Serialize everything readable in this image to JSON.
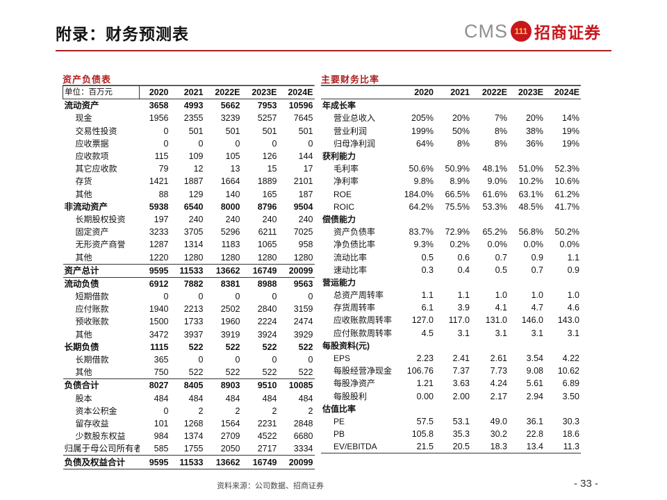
{
  "header": {
    "title": "附录：财务预测表",
    "logo_text": "CMS",
    "logo_mark": "111",
    "logo_cn": "招商证券"
  },
  "balance_sheet": {
    "title": "资产负债表",
    "unit_label": "单位：百万元",
    "years": [
      "2020",
      "2021",
      "2022E",
      "2023E",
      "2024E"
    ],
    "rows": [
      {
        "label": "流动资产",
        "style": "bold",
        "values": [
          "3658",
          "4993",
          "5662",
          "7953",
          "10596"
        ]
      },
      {
        "label": "现金",
        "style": "sub",
        "values": [
          "1956",
          "2355",
          "3239",
          "5257",
          "7645"
        ]
      },
      {
        "label": "交易性投资",
        "style": "sub",
        "values": [
          "0",
          "501",
          "501",
          "501",
          "501"
        ]
      },
      {
        "label": "应收票据",
        "style": "sub",
        "values": [
          "0",
          "0",
          "0",
          "0",
          "0"
        ]
      },
      {
        "label": "应收款项",
        "style": "sub",
        "values": [
          "115",
          "109",
          "105",
          "126",
          "144"
        ]
      },
      {
        "label": "其它应收款",
        "style": "sub",
        "values": [
          "79",
          "12",
          "13",
          "15",
          "17"
        ]
      },
      {
        "label": "存货",
        "style": "sub",
        "values": [
          "1421",
          "1887",
          "1664",
          "1889",
          "2101"
        ]
      },
      {
        "label": "其他",
        "style": "sub",
        "values": [
          "88",
          "129",
          "140",
          "165",
          "187"
        ]
      },
      {
        "label": "非流动资产",
        "style": "bold",
        "values": [
          "5938",
          "6540",
          "8000",
          "8796",
          "9504"
        ]
      },
      {
        "label": "长期股权投资",
        "style": "sub",
        "values": [
          "197",
          "240",
          "240",
          "240",
          "240"
        ]
      },
      {
        "label": "固定资产",
        "style": "sub",
        "values": [
          "3233",
          "3705",
          "5296",
          "6211",
          "7025"
        ]
      },
      {
        "label": "无形资产商誉",
        "style": "sub",
        "values": [
          "1287",
          "1314",
          "1183",
          "1065",
          "958"
        ]
      },
      {
        "label": "其他",
        "style": "sub",
        "values": [
          "1220",
          "1280",
          "1280",
          "1280",
          "1280"
        ]
      },
      {
        "label": "资产总计",
        "style": "tot",
        "values": [
          "9595",
          "11533",
          "13662",
          "16749",
          "20099"
        ]
      },
      {
        "label": "流动负债",
        "style": "tot",
        "values": [
          "6912",
          "7882",
          "8381",
          "8988",
          "9563"
        ]
      },
      {
        "label": "短期借款",
        "style": "sub",
        "values": [
          "0",
          "0",
          "0",
          "0",
          "0"
        ]
      },
      {
        "label": "应付账款",
        "style": "sub",
        "values": [
          "1940",
          "2213",
          "2502",
          "2840",
          "3159"
        ]
      },
      {
        "label": "预收账款",
        "style": "sub",
        "values": [
          "1500",
          "1733",
          "1960",
          "2224",
          "2474"
        ]
      },
      {
        "label": "其他",
        "style": "sub",
        "values": [
          "3472",
          "3937",
          "3919",
          "3924",
          "3929"
        ]
      },
      {
        "label": "长期负债",
        "style": "bold",
        "values": [
          "1115",
          "522",
          "522",
          "522",
          "522"
        ]
      },
      {
        "label": "长期借款",
        "style": "sub",
        "values": [
          "365",
          "0",
          "0",
          "0",
          "0"
        ]
      },
      {
        "label": "其他",
        "style": "sub",
        "values": [
          "750",
          "522",
          "522",
          "522",
          "522"
        ]
      },
      {
        "label": "负债合计",
        "style": "tot",
        "values": [
          "8027",
          "8405",
          "8903",
          "9510",
          "10085"
        ]
      },
      {
        "label": "股本",
        "style": "sub",
        "values": [
          "484",
          "484",
          "484",
          "484",
          "484"
        ]
      },
      {
        "label": "资本公积金",
        "style": "sub",
        "values": [
          "0",
          "2",
          "2",
          "2",
          "2"
        ]
      },
      {
        "label": "留存收益",
        "style": "sub",
        "values": [
          "101",
          "1268",
          "1564",
          "2231",
          "2848"
        ]
      },
      {
        "label": "少数股东权益",
        "style": "sub",
        "values": [
          "984",
          "1374",
          "2709",
          "4522",
          "6680"
        ]
      },
      {
        "label": "归属于母公司所有者权益",
        "style": "plain",
        "values": [
          "585",
          "1755",
          "2050",
          "2717",
          "3334"
        ]
      },
      {
        "label": "负债及权益合计",
        "style": "tot",
        "values": [
          "9595",
          "11533",
          "13662",
          "16749",
          "20099"
        ]
      }
    ]
  },
  "ratios": {
    "title": "主要财务比率",
    "years": [
      "2020",
      "2021",
      "2022E",
      "2023E",
      "2024E"
    ],
    "rows": [
      {
        "label": "年成长率",
        "style": "sec",
        "values": [
          "",
          "",
          "",
          "",
          ""
        ]
      },
      {
        "label": "营业总收入",
        "style": "sub",
        "values": [
          "205%",
          "20%",
          "7%",
          "20%",
          "14%"
        ]
      },
      {
        "label": "营业利润",
        "style": "sub",
        "values": [
          "199%",
          "50%",
          "8%",
          "38%",
          "19%"
        ]
      },
      {
        "label": "归母净利润",
        "style": "sub",
        "values": [
          "64%",
          "8%",
          "8%",
          "36%",
          "19%"
        ]
      },
      {
        "label": "获利能力",
        "style": "sec",
        "values": [
          "",
          "",
          "",
          "",
          ""
        ]
      },
      {
        "label": "毛利率",
        "style": "sub",
        "values": [
          "50.6%",
          "50.9%",
          "48.1%",
          "51.0%",
          "52.3%"
        ]
      },
      {
        "label": "净利率",
        "style": "sub",
        "values": [
          "9.8%",
          "8.9%",
          "9.0%",
          "10.2%",
          "10.6%"
        ]
      },
      {
        "label": "ROE",
        "style": "sub",
        "values": [
          "184.0%",
          "66.5%",
          "61.6%",
          "63.1%",
          "61.2%"
        ]
      },
      {
        "label": "ROIC",
        "style": "sub",
        "values": [
          "64.2%",
          "75.5%",
          "53.3%",
          "48.5%",
          "41.7%"
        ]
      },
      {
        "label": "偿债能力",
        "style": "sec",
        "values": [
          "",
          "",
          "",
          "",
          ""
        ]
      },
      {
        "label": "资产负债率",
        "style": "sub",
        "values": [
          "83.7%",
          "72.9%",
          "65.2%",
          "56.8%",
          "50.2%"
        ]
      },
      {
        "label": "净负债比率",
        "style": "sub",
        "values": [
          "9.3%",
          "0.2%",
          "0.0%",
          "0.0%",
          "0.0%"
        ]
      },
      {
        "label": "流动比率",
        "style": "sub",
        "values": [
          "0.5",
          "0.6",
          "0.7",
          "0.9",
          "1.1"
        ]
      },
      {
        "label": "速动比率",
        "style": "sub",
        "values": [
          "0.3",
          "0.4",
          "0.5",
          "0.7",
          "0.9"
        ]
      },
      {
        "label": "营运能力",
        "style": "sec",
        "values": [
          "",
          "",
          "",
          "",
          ""
        ]
      },
      {
        "label": "总资产周转率",
        "style": "sub",
        "values": [
          "1.1",
          "1.1",
          "1.0",
          "1.0",
          "1.0"
        ]
      },
      {
        "label": "存货周转率",
        "style": "sub",
        "values": [
          "6.1",
          "3.9",
          "4.1",
          "4.7",
          "4.6"
        ]
      },
      {
        "label": "应收账款周转率",
        "style": "sub",
        "values": [
          "127.0",
          "117.0",
          "131.0",
          "146.0",
          "143.0"
        ]
      },
      {
        "label": "应付账款周转率",
        "style": "sub",
        "values": [
          "4.5",
          "3.1",
          "3.1",
          "3.1",
          "3.1"
        ]
      },
      {
        "label": "每股资料(元)",
        "style": "sec",
        "values": [
          "",
          "",
          "",
          "",
          ""
        ]
      },
      {
        "label": "EPS",
        "style": "sub",
        "values": [
          "2.23",
          "2.41",
          "2.61",
          "3.54",
          "4.22"
        ]
      },
      {
        "label": "每股经营净现金",
        "style": "sub",
        "values": [
          "106.76",
          "7.37",
          "7.73",
          "9.08",
          "10.62"
        ]
      },
      {
        "label": "每股净资产",
        "style": "sub",
        "values": [
          "1.21",
          "3.63",
          "4.24",
          "5.61",
          "6.89"
        ]
      },
      {
        "label": "每股股利",
        "style": "sub",
        "values": [
          "0.00",
          "2.00",
          "2.17",
          "2.94",
          "3.50"
        ]
      },
      {
        "label": "估值比率",
        "style": "sec",
        "values": [
          "",
          "",
          "",
          "",
          ""
        ]
      },
      {
        "label": "PE",
        "style": "sub",
        "values": [
          "57.5",
          "53.1",
          "49.0",
          "36.1",
          "30.3"
        ]
      },
      {
        "label": "PB",
        "style": "sub",
        "values": [
          "105.8",
          "35.3",
          "30.2",
          "22.8",
          "18.6"
        ]
      },
      {
        "label": "EV/EBITDA",
        "style": "sub",
        "values": [
          "21.5",
          "20.5",
          "18.3",
          "13.4",
          "11.3"
        ]
      }
    ]
  },
  "footer": {
    "source": "资料来源：公司数据、招商证券",
    "page_number": "- 33 -"
  }
}
